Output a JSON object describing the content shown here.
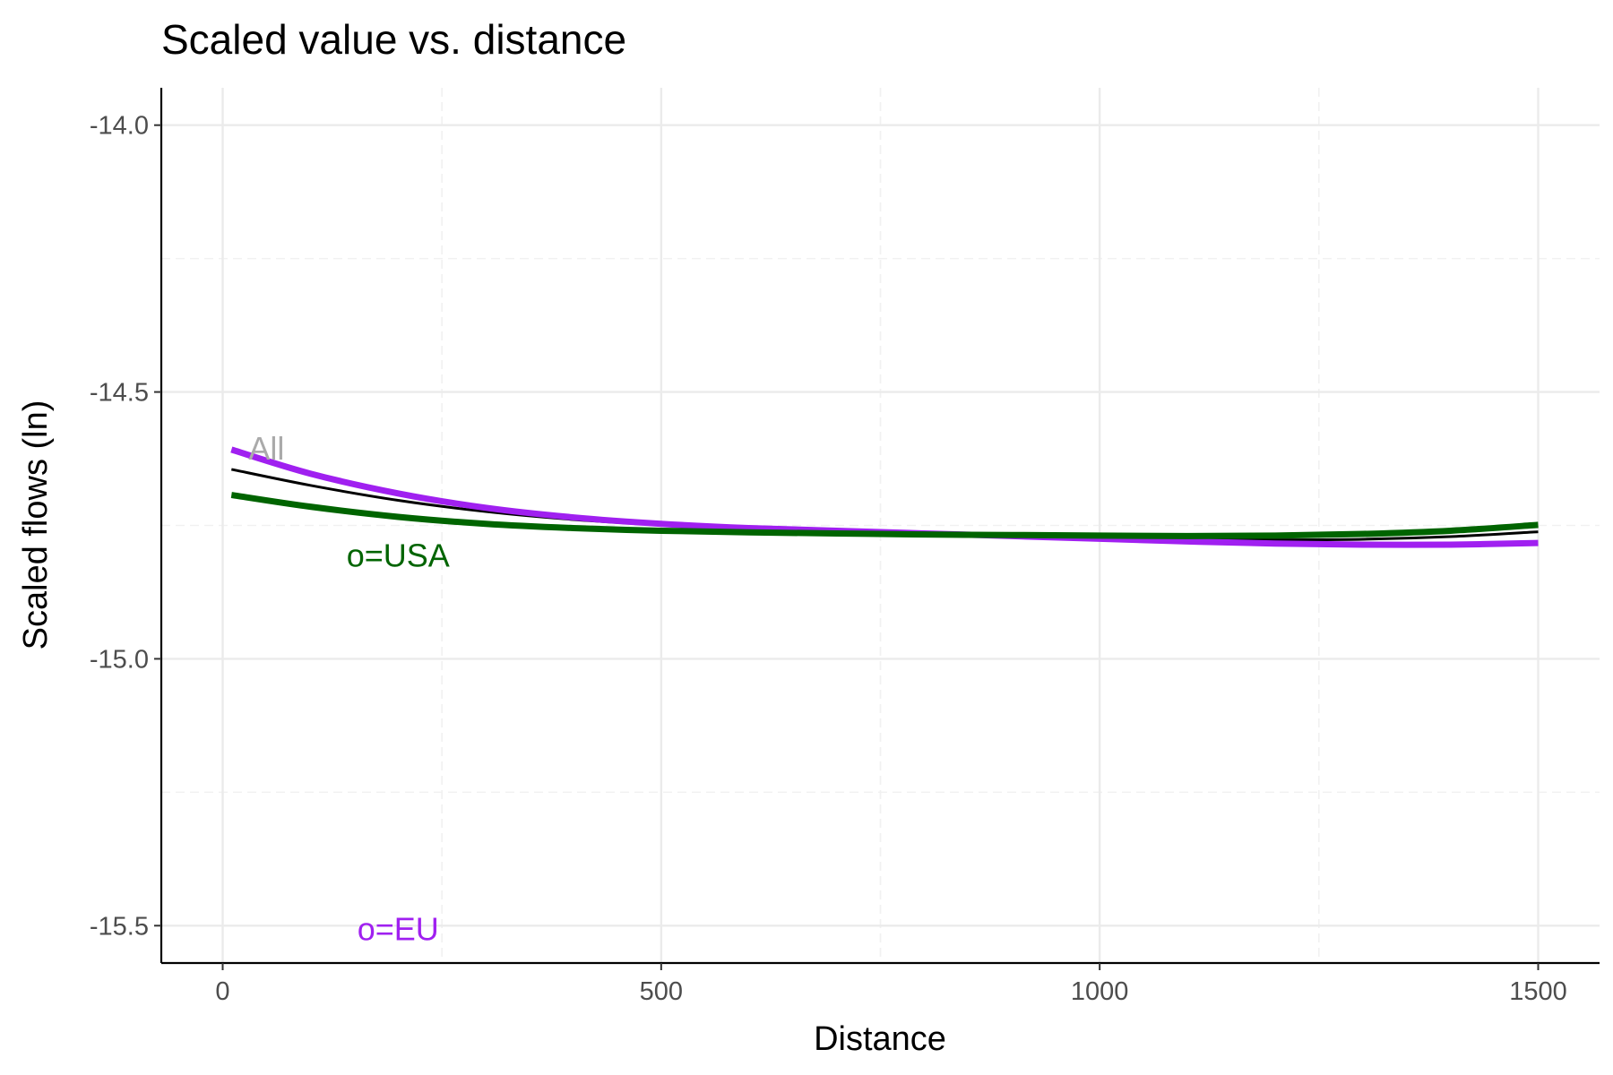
{
  "chart_data": {
    "type": "line",
    "title": "Scaled value vs. distance",
    "xlabel": "Distance",
    "ylabel": "Scaled flows (ln)",
    "xlim": [
      -70,
      1570
    ],
    "ylim": [
      -15.57,
      -13.93
    ],
    "x_ticks": [
      0,
      500,
      1000,
      1500
    ],
    "x_tick_labels": [
      "0",
      "500",
      "1000",
      "1500"
    ],
    "y_ticks": [
      -14.0,
      -14.5,
      -15.0,
      -15.5
    ],
    "y_tick_labels": [
      "-14.0",
      "-14.5",
      "-15.0",
      "-15.5"
    ],
    "grid": true,
    "legend": "none",
    "series": [
      {
        "color": "#000000",
        "x": [
          10,
          100,
          200,
          300,
          400,
          500,
          600,
          700,
          800,
          900,
          1000,
          1100,
          1200,
          1300,
          1400,
          1500
        ],
        "values": [
          -14.645,
          -14.675,
          -14.703,
          -14.724,
          -14.739,
          -14.749,
          -14.756,
          -14.761,
          -14.765,
          -14.769,
          -14.773,
          -14.776,
          -14.777,
          -14.776,
          -14.771,
          -14.762
        ]
      },
      {
        "color": "#A020F0",
        "x": [
          10,
          100,
          200,
          300,
          400,
          500,
          600,
          700,
          800,
          900,
          1000,
          1100,
          1200,
          1300,
          1400,
          1500
        ],
        "values": [
          -14.608,
          -14.653,
          -14.69,
          -14.717,
          -14.735,
          -14.747,
          -14.755,
          -14.76,
          -14.765,
          -14.77,
          -14.775,
          -14.78,
          -14.784,
          -14.786,
          -14.786,
          -14.783
        ]
      },
      {
        "color": "#006400",
        "x": [
          10,
          100,
          200,
          300,
          400,
          500,
          600,
          700,
          800,
          900,
          1000,
          1100,
          1200,
          1300,
          1400,
          1500
        ],
        "values": [
          -14.693,
          -14.715,
          -14.734,
          -14.747,
          -14.755,
          -14.76,
          -14.763,
          -14.765,
          -14.767,
          -14.768,
          -14.769,
          -14.77,
          -14.769,
          -14.766,
          -14.76,
          -14.749
        ]
      }
    ],
    "annotations": [
      {
        "text": "All",
        "x": 50,
        "y": -14.605,
        "color": "#AAAAAA"
      },
      {
        "text": "o=USA",
        "x": 200,
        "y": -14.805,
        "color": "#006400"
      },
      {
        "text": "o=EU",
        "x": 200,
        "y": -15.505,
        "color": "#A020F0"
      }
    ]
  }
}
